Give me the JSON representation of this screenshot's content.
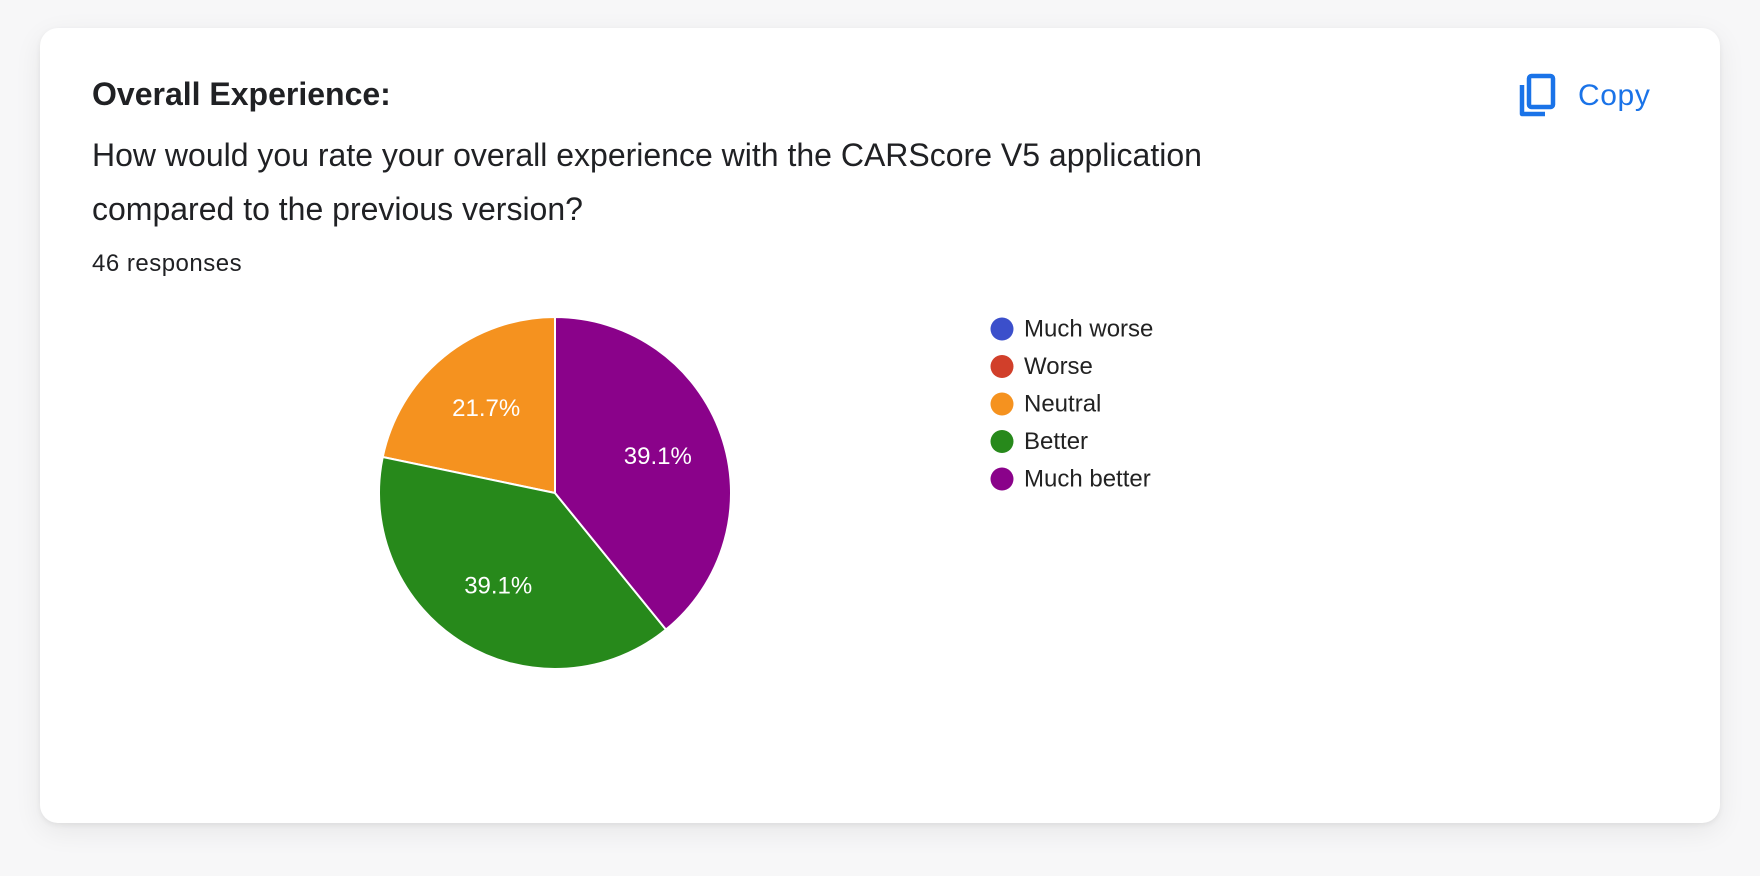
{
  "header": {
    "title": "Overall Experience:",
    "question": "How would you rate your overall experience with the CARScore V5 application compared to the previous version?",
    "responses": "46 responses"
  },
  "toolbar": {
    "copy_label": "Copy",
    "copy_icon": "copy-icon",
    "accent": "#1a73e8"
  },
  "chart_data": {
    "type": "pie",
    "start_angle_deg": 90,
    "direction": "counterclockwise",
    "legend_placement": "right",
    "slices": [
      {
        "label": "Much worse",
        "value": 0,
        "percent_label": "",
        "color": "#3b4fcb"
      },
      {
        "label": "Worse",
        "value": 0,
        "percent_label": "",
        "color": "#d13f2a"
      },
      {
        "label": "Neutral",
        "value": 21.7,
        "percent_label": "21.7%",
        "color": "#f5921f"
      },
      {
        "label": "Better",
        "value": 39.1,
        "percent_label": "39.1%",
        "color": "#27891b"
      },
      {
        "label": "Much better",
        "value": 39.1,
        "percent_label": "39.1%",
        "color": "#8a028a"
      }
    ]
  }
}
